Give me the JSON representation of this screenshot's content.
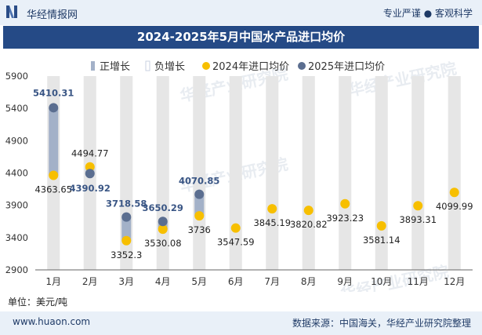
{
  "header": {
    "brand": "华经情报网",
    "tagline": "专业严谨 ● 客观科学"
  },
  "title": "2024-2025年5月中国水产品进口均价",
  "unit": "单位：美元/吨",
  "footer": {
    "url": "www.huaon.com",
    "source": "数据来源：中国海关，华经产业研究院整理"
  },
  "watermark": {
    "cn": "华经产业研究院",
    "en": "www.huaon.com"
  },
  "colors": {
    "header_bg": "#e9f0f8",
    "title_bg": "#254a86",
    "bar": "#a3b1c8",
    "dot_2024": "#f7bf00",
    "dot_2025": "#5b6e90",
    "column_bg": "#e6e6e6",
    "label_2025": "#3a5685"
  },
  "chart_data": {
    "type": "line",
    "title": "2024-2025年5月中国水产品进口均价",
    "ylabel": "单位：美元/吨",
    "ylim": [
      2900,
      5900
    ],
    "yticks": [
      2900,
      3400,
      3900,
      4400,
      4900,
      5400,
      5900
    ],
    "categories": [
      "1月",
      "2月",
      "3月",
      "4月",
      "5月",
      "6月",
      "7月",
      "8月",
      "9月",
      "10月",
      "11月",
      "12月"
    ],
    "legend": [
      "正增长",
      "负增长",
      "2024年进口均价",
      "2025年进口均价"
    ],
    "legend_position": "top",
    "series": [
      {
        "name": "2024年进口均价",
        "values": [
          4363.65,
          4494.77,
          3352.3,
          3530.08,
          3736,
          3547.59,
          3845.19,
          3820.82,
          3923.23,
          3581.14,
          3893.31,
          4099.99
        ],
        "labels": [
          "4363.65",
          "4494.77",
          "3352.3",
          "3530.08",
          "3736",
          "3547.59",
          "3845.19",
          "3820.82",
          "3923.23",
          "3581.14",
          "3893.31",
          "4099.99"
        ]
      },
      {
        "name": "2025年进口均价",
        "values": [
          5410.31,
          4390.92,
          3718.58,
          3650.29,
          4070.85,
          null,
          null,
          null,
          null,
          null,
          null,
          null
        ],
        "labels": [
          "5410.31",
          "4390.92",
          "3718.58",
          "3650.29",
          "4070.85",
          "",
          "",
          "",
          "",
          "",
          "",
          ""
        ]
      }
    ],
    "growth_bars": [
      {
        "type": "正增长",
        "from": 4363.65,
        "to": 5410.31
      },
      {
        "type": "负增长",
        "from": 4494.77,
        "to": 4390.92
      },
      {
        "type": "正增长",
        "from": 3352.3,
        "to": 3718.58
      },
      {
        "type": "正增长",
        "from": 3530.08,
        "to": 3650.29
      },
      {
        "type": "正增长",
        "from": 3736,
        "to": 4070.85
      }
    ]
  }
}
